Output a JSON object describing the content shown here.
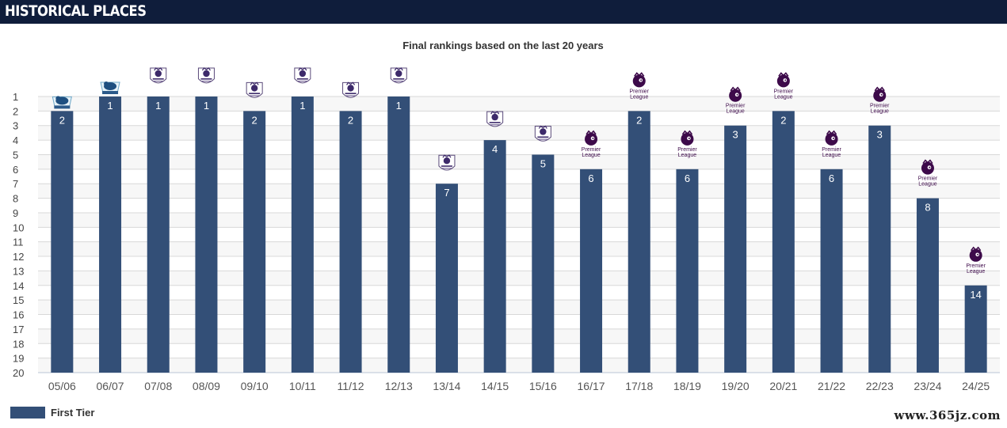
{
  "header": {
    "title": "HISTORICAL PLACES"
  },
  "chart_data": {
    "type": "bar",
    "title": "Final rankings based on the last 20 years",
    "xlabel": "",
    "ylabel": "",
    "categories": [
      "05/06",
      "06/07",
      "07/08",
      "08/09",
      "09/10",
      "10/11",
      "11/12",
      "12/13",
      "13/14",
      "14/15",
      "15/16",
      "16/17",
      "17/18",
      "18/19",
      "19/20",
      "20/21",
      "21/22",
      "22/23",
      "23/24",
      "24/25"
    ],
    "series": [
      {
        "name": "First Tier",
        "values": [
          2,
          1,
          1,
          1,
          2,
          1,
          2,
          1,
          7,
          4,
          5,
          6,
          2,
          6,
          3,
          2,
          6,
          3,
          8,
          14
        ]
      }
    ],
    "ylim": [
      20,
      1
    ],
    "y_inverted": true,
    "yticks": [
      1,
      2,
      3,
      4,
      5,
      6,
      7,
      8,
      9,
      10,
      11,
      12,
      13,
      14,
      15,
      16,
      17,
      18,
      19,
      20
    ],
    "grid": true,
    "legend_position": "bottom-left",
    "bar_color": "#334f77",
    "badges": [
      "old-pl-lion",
      "old-pl-lion",
      "pl-crest",
      "pl-crest",
      "pl-crest",
      "pl-crest",
      "pl-crest",
      "pl-crest",
      "pl-crest",
      "pl-crest",
      "pl-crest",
      "pl-lion-logo",
      "pl-lion-logo",
      "pl-lion-logo",
      "pl-lion-logo",
      "pl-lion-logo",
      "pl-lion-logo",
      "pl-lion-logo",
      "pl-lion-logo",
      "pl-lion-logo"
    ],
    "badge_text": [
      "Premier",
      "League"
    ]
  },
  "legend": {
    "label": "First Tier",
    "color": "#334f77"
  },
  "watermark": "www.365jz.com"
}
